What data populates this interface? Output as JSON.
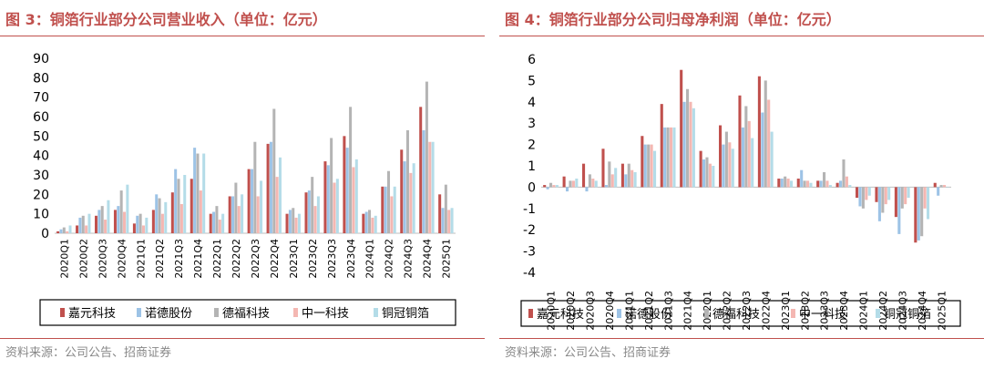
{
  "source": "资料来源：公司公告、招商证券",
  "colors": {
    "title": "#c0504d",
    "series": [
      "#c0504d",
      "#9dc3e6",
      "#b4b4b4",
      "#f4b7b2",
      "#b4dce8"
    ]
  },
  "chart_data": [
    {
      "type": "bar",
      "title": "图 3：铜箔行业部分公司营业收入（单位：亿元）",
      "xlabel": "",
      "ylabel": "",
      "ylim": [
        0,
        90
      ],
      "yticks": [
        0,
        10,
        20,
        30,
        40,
        50,
        60,
        70,
        80,
        90
      ],
      "categories": [
        "2020Q1",
        "2020Q2",
        "2020Q3",
        "2020Q4",
        "2021Q1",
        "2021Q2",
        "2021Q3",
        "2021Q4",
        "2022Q1",
        "2022Q2",
        "2022Q3",
        "2022Q4",
        "2023Q1",
        "2023Q2",
        "2023Q3",
        "2023Q4",
        "2024Q1",
        "2024Q2",
        "2024Q3",
        "2024Q4",
        "2025Q1"
      ],
      "tick_labels": [
        "2020Q1",
        "2020Q2",
        "2020Q3",
        "2020Q4",
        "2021Q1",
        "2021Q2",
        "2021Q3",
        "2021Q4",
        "2022Q1",
        "2022Q2",
        "2022Q3",
        "2022Q4",
        "2023Q1",
        "2023Q2",
        "2023Q3",
        "2023Q4",
        "2024Q1",
        "2024Q2",
        "2024Q3",
        "2024Q4",
        "2025Q1"
      ],
      "legend": "bottom",
      "grid": false,
      "series": [
        {
          "name": "嘉元科技",
          "values": [
            1,
            4,
            9,
            12,
            5,
            12,
            21,
            28,
            10,
            19,
            33,
            46,
            10,
            21,
            37,
            50,
            10,
            24,
            43,
            65,
            20
          ]
        },
        {
          "name": "诺德股份",
          "values": [
            2,
            8,
            12,
            14,
            9,
            20,
            33,
            44,
            11,
            19,
            33,
            47,
            12,
            22,
            35,
            44,
            11,
            24,
            37,
            53,
            13
          ]
        },
        {
          "name": "德福科技",
          "values": [
            3,
            9,
            14,
            22,
            10,
            18,
            28,
            41,
            14,
            26,
            47,
            64,
            13,
            29,
            49,
            65,
            12,
            32,
            53,
            78,
            25
          ]
        },
        {
          "name": "中一科技",
          "values": [
            1,
            4,
            7,
            11,
            4,
            10,
            15,
            22,
            7,
            14,
            19,
            29,
            8,
            14,
            26,
            34,
            8,
            19,
            31,
            47,
            12
          ]
        },
        {
          "name": "铜冠铜箔",
          "values": [
            4,
            10,
            17,
            25,
            8,
            16,
            30,
            41,
            10,
            20,
            27,
            39,
            10,
            19,
            28,
            38,
            9,
            24,
            36,
            47,
            13
          ]
        }
      ]
    },
    {
      "type": "bar",
      "title": "图 4：铜箔行业部分公司归母净利润（单位：亿元）",
      "xlabel": "",
      "ylabel": "",
      "ylim": [
        -4,
        6
      ],
      "yticks": [
        -4,
        -3,
        -2,
        -1,
        0,
        1,
        2,
        3,
        4,
        5,
        6
      ],
      "categories": [
        "2020Q1",
        "2020Q2",
        "2020Q3",
        "2020Q4",
        "2021Q1",
        "2021Q2",
        "2021Q3",
        "2021Q4",
        "2022Q1",
        "2022Q2",
        "2022Q3",
        "2022Q4",
        "2023Q1",
        "2023Q2",
        "2023Q3",
        "2023Q4",
        "2024Q1",
        "2024Q2",
        "2024Q3",
        "2024Q4",
        "2025Q1"
      ],
      "tick_labels": [
        "2020Q1",
        "2020Q2",
        "2020Q3",
        "2020Q4",
        "2021Q1",
        "2021Q2",
        "2021Q3",
        "2021Q4",
        "2022Q1",
        "2022Q2",
        "2022Q3",
        "2022Q4",
        "2023Q1",
        "2023Q2",
        "2023Q3",
        "2023Q4",
        "2024Q1",
        "2024Q2",
        "2024Q3",
        "2024Q4",
        "2025Q1"
      ],
      "legend": "bottom",
      "grid": false,
      "series": [
        {
          "name": "嘉元科技",
          "values": [
            0.1,
            0.5,
            1.1,
            1.8,
            1.1,
            2.4,
            3.9,
            5.5,
            1.7,
            2.9,
            4.3,
            5.2,
            0.4,
            0.4,
            0.3,
            0.2,
            -0.5,
            -0.7,
            -1.4,
            -2.6,
            0.2
          ]
        },
        {
          "name": "诺德股份",
          "values": [
            -0.1,
            -0.2,
            -0.2,
            0.1,
            0.6,
            2.0,
            2.8,
            4.0,
            1.3,
            2.0,
            2.8,
            3.5,
            0.4,
            0.8,
            0.3,
            0.3,
            -0.9,
            -1.6,
            -2.2,
            -2.5,
            -0.4
          ]
        },
        {
          "name": "德福科技",
          "values": [
            0.2,
            0.3,
            0.6,
            1.2,
            1.1,
            2.0,
            2.8,
            4.6,
            1.4,
            2.6,
            3.8,
            5.0,
            0.5,
            0.3,
            0.7,
            1.3,
            -1.0,
            -1.2,
            -1.0,
            -2.3,
            0.1
          ]
        },
        {
          "name": "中一科技",
          "values": [
            0.1,
            0.3,
            0.4,
            0.6,
            0.8,
            2.0,
            2.8,
            4.0,
            1.1,
            2.1,
            3.1,
            4.1,
            0.4,
            0.3,
            0.3,
            0.5,
            -0.6,
            -0.8,
            -0.8,
            -1.0,
            0.1
          ]
        },
        {
          "name": "铜冠铜箔",
          "values": [
            0.1,
            0.4,
            0.3,
            0.9,
            0.7,
            1.7,
            2.8,
            3.7,
            1.0,
            1.8,
            2.3,
            2.6,
            0.3,
            0.2,
            0.1,
            0.1,
            -0.4,
            -0.6,
            -0.5,
            -1.5,
            0.0
          ]
        }
      ]
    }
  ]
}
